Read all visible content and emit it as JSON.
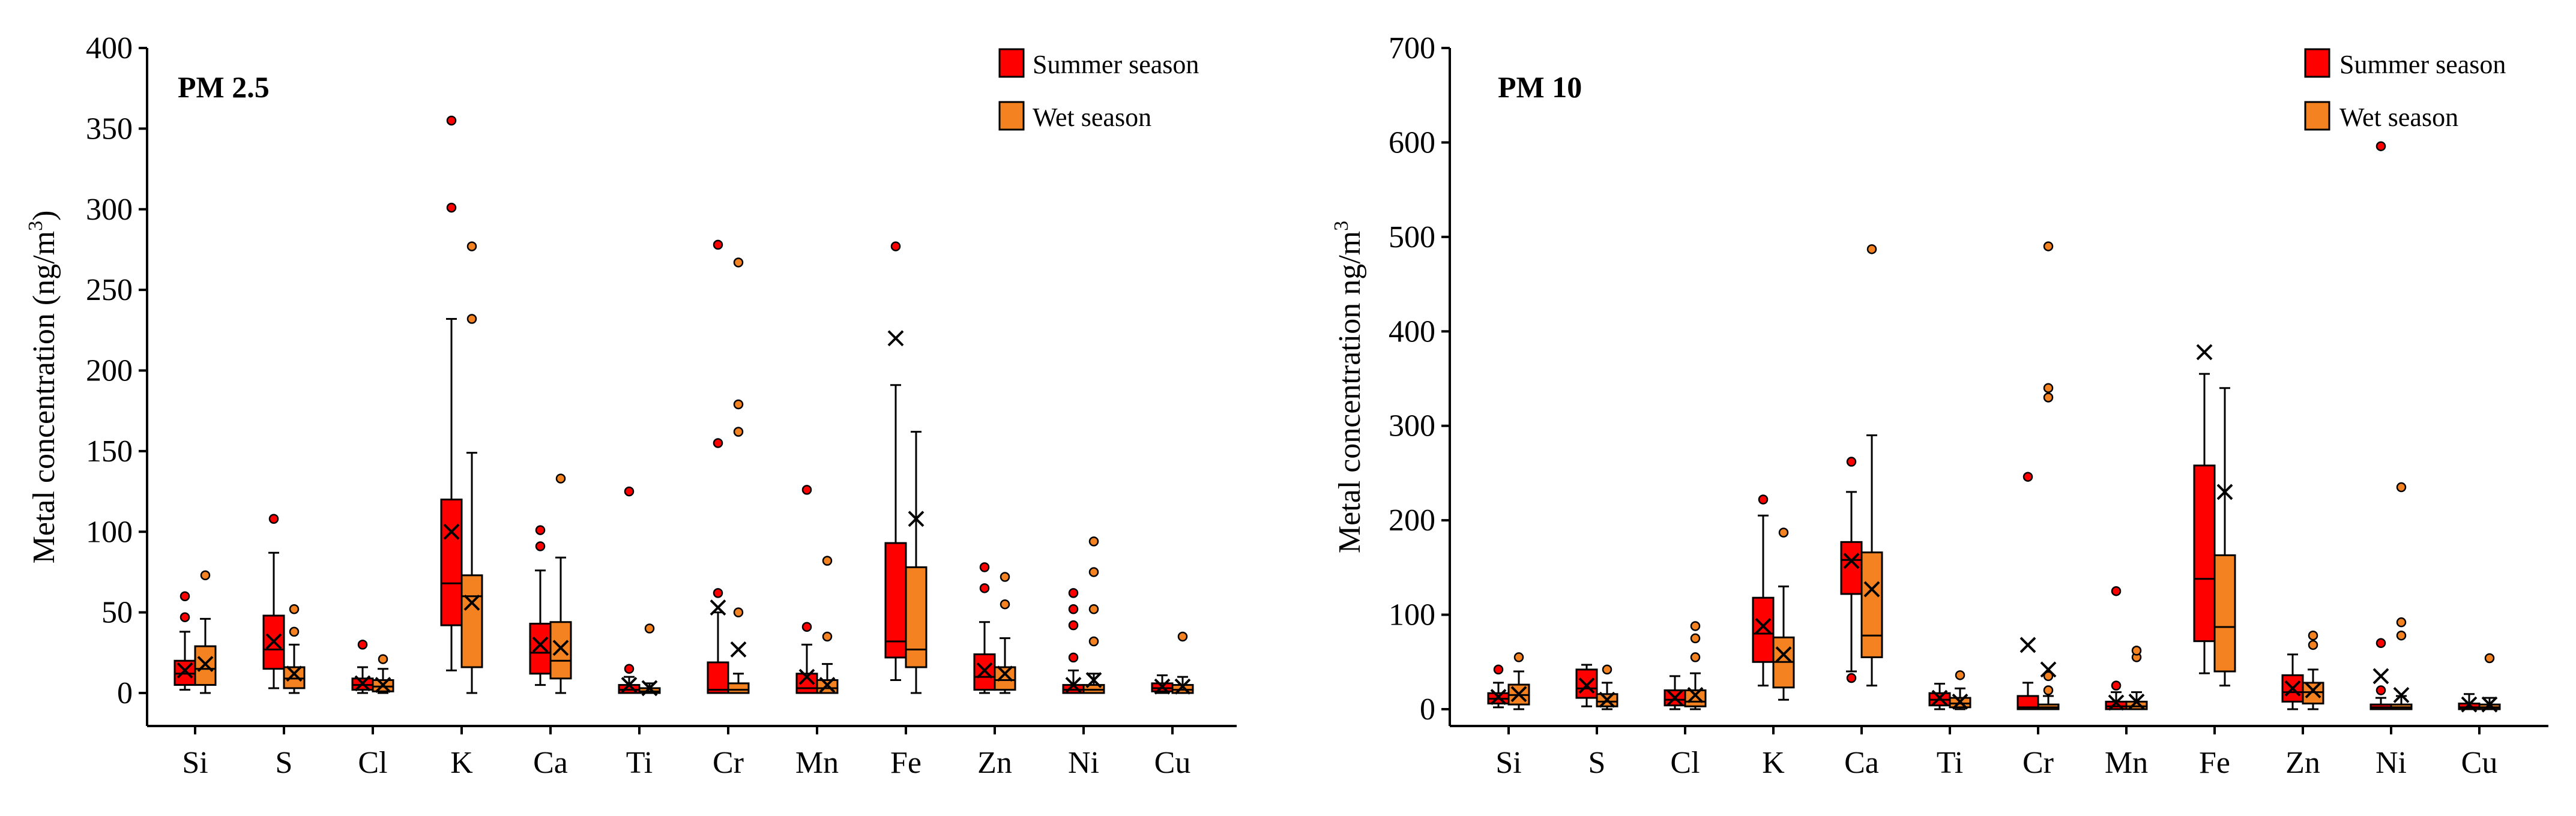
{
  "colors": {
    "summer": "#ff0000",
    "wet": "#f58220",
    "axis": "#000000"
  },
  "chart_data": [
    {
      "type": "boxplot",
      "id": "pm25",
      "title": "PM 2.5",
      "ylabel_main": "Metal concentration (ng/m",
      "ylabel_sup": "3",
      "ylabel_end": ")",
      "ylim": [
        0,
        400
      ],
      "yticks": [
        0,
        50,
        100,
        150,
        200,
        250,
        300,
        350,
        400
      ],
      "legend": {
        "position": "top-right",
        "entries": [
          "Summer season",
          "Wet season"
        ]
      },
      "categories": [
        "Si",
        "S",
        "Cl",
        "K",
        "Ca",
        "Ti",
        "Cr",
        "Mn",
        "Fe",
        "Zn",
        "Ni",
        "Cu"
      ],
      "series": [
        {
          "name": "Summer season",
          "boxes": [
            {
              "min": 2,
              "q1": 5,
              "median": 12,
              "q3": 20,
              "max": 38,
              "mean": 14,
              "outliers": [
                47,
                60
              ]
            },
            {
              "min": 3,
              "q1": 15,
              "median": 27,
              "q3": 48,
              "max": 87,
              "mean": 32,
              "outliers": [
                108
              ]
            },
            {
              "min": 0,
              "q1": 2,
              "median": 5,
              "q3": 9,
              "max": 16,
              "mean": 6,
              "outliers": [
                30
              ]
            },
            {
              "min": 14,
              "q1": 42,
              "median": 68,
              "q3": 120,
              "max": 232,
              "mean": 100,
              "outliers": [
                301,
                355
              ]
            },
            {
              "min": 5,
              "q1": 12,
              "median": 25,
              "q3": 43,
              "max": 76,
              "mean": 30,
              "outliers": [
                91,
                101
              ]
            },
            {
              "min": 0,
              "q1": 0,
              "median": 2,
              "q3": 5,
              "max": 10,
              "mean": 5,
              "outliers": [
                15,
                125
              ]
            },
            {
              "min": 0,
              "q1": 0,
              "median": 2,
              "q3": 19,
              "max": 50,
              "mean": 53,
              "outliers": [
                62,
                155,
                278
              ]
            },
            {
              "min": 0,
              "q1": 0,
              "median": 3,
              "q3": 12,
              "max": 30,
              "mean": 10,
              "outliers": [
                41,
                126
              ]
            },
            {
              "min": 8,
              "q1": 22,
              "median": 32,
              "q3": 93,
              "max": 191,
              "mean": 220,
              "outliers": [
                277
              ]
            },
            {
              "min": 0,
              "q1": 2,
              "median": 10,
              "q3": 24,
              "max": 44,
              "mean": 14,
              "outliers": [
                65,
                78
              ]
            },
            {
              "min": 0,
              "q1": 0,
              "median": 2,
              "q3": 5,
              "max": 14,
              "mean": 5,
              "outliers": [
                22,
                42,
                52,
                62
              ]
            },
            {
              "min": 0,
              "q1": 1,
              "median": 3,
              "q3": 6,
              "max": 11,
              "mean": 4,
              "outliers": []
            }
          ]
        },
        {
          "name": "Wet season",
          "boxes": [
            {
              "min": 0,
              "q1": 5,
              "median": 15,
              "q3": 29,
              "max": 46,
              "mean": 18,
              "outliers": [
                73
              ]
            },
            {
              "min": 0,
              "q1": 3,
              "median": 9,
              "q3": 16,
              "max": 30,
              "mean": 12,
              "outliers": [
                38,
                52
              ]
            },
            {
              "min": 0,
              "q1": 1,
              "median": 4,
              "q3": 8,
              "max": 15,
              "mean": 5,
              "outliers": [
                21
              ]
            },
            {
              "min": 0,
              "q1": 16,
              "median": 60,
              "q3": 73,
              "max": 149,
              "mean": 56,
              "outliers": [
                232,
                277
              ]
            },
            {
              "min": 0,
              "q1": 9,
              "median": 20,
              "q3": 44,
              "max": 84,
              "mean": 28,
              "outliers": [
                133
              ]
            },
            {
              "min": 0,
              "q1": 0,
              "median": 1,
              "q3": 3,
              "max": 6,
              "mean": 3,
              "outliers": [
                40
              ]
            },
            {
              "min": 0,
              "q1": 0,
              "median": 2,
              "q3": 6,
              "max": 12,
              "mean": 27,
              "outliers": [
                50,
                162,
                179,
                267
              ]
            },
            {
              "min": 0,
              "q1": 0,
              "median": 3,
              "q3": 8,
              "max": 18,
              "mean": 5,
              "outliers": [
                35,
                82
              ]
            },
            {
              "min": 0,
              "q1": 16,
              "median": 27,
              "q3": 78,
              "max": 162,
              "mean": 108,
              "outliers": []
            },
            {
              "min": 0,
              "q1": 2,
              "median": 8,
              "q3": 16,
              "max": 34,
              "mean": 12,
              "outliers": [
                55,
                72
              ]
            },
            {
              "min": 0,
              "q1": 0,
              "median": 2,
              "q3": 5,
              "max": 12,
              "mean": 8,
              "outliers": [
                32,
                52,
                75,
                94
              ]
            },
            {
              "min": 0,
              "q1": 0,
              "median": 2,
              "q3": 5,
              "max": 10,
              "mean": 4,
              "outliers": [
                35
              ]
            }
          ]
        }
      ]
    },
    {
      "type": "boxplot",
      "id": "pm10",
      "title": "PM 10",
      "ylabel_main": "Metal concentration ng/m",
      "ylabel_sup": "3",
      "ylabel_end": "",
      "ylim": [
        0,
        700
      ],
      "yticks": [
        0,
        100,
        200,
        300,
        400,
        500,
        600,
        700
      ],
      "legend": {
        "position": "top-right",
        "entries": [
          "Summer season",
          "Wet season"
        ]
      },
      "categories": [
        "Si",
        "S",
        "Cl",
        "K",
        "Ca",
        "Ti",
        "Cr",
        "Mn",
        "Fe",
        "Zn",
        "Ni",
        "Cu"
      ],
      "series": [
        {
          "name": "Summer season",
          "boxes": [
            {
              "min": 2,
              "q1": 6,
              "median": 11,
              "q3": 17,
              "max": 28,
              "mean": 13,
              "outliers": [
                42
              ]
            },
            {
              "min": 3,
              "q1": 12,
              "median": 22,
              "q3": 42,
              "max": 47,
              "mean": 25,
              "outliers": []
            },
            {
              "min": 0,
              "q1": 4,
              "median": 10,
              "q3": 20,
              "max": 35,
              "mean": 12,
              "outliers": []
            },
            {
              "min": 25,
              "q1": 50,
              "median": 80,
              "q3": 118,
              "max": 205,
              "mean": 88,
              "outliers": [
                222
              ]
            },
            {
              "min": 40,
              "q1": 122,
              "median": 158,
              "q3": 177,
              "max": 230,
              "mean": 157,
              "outliers": [
                33,
                262
              ]
            },
            {
              "min": 0,
              "q1": 4,
              "median": 10,
              "q3": 17,
              "max": 27,
              "mean": 12,
              "outliers": []
            },
            {
              "min": 0,
              "q1": 0,
              "median": 2,
              "q3": 14,
              "max": 28,
              "mean": 68,
              "outliers": [
                246
              ]
            },
            {
              "min": 0,
              "q1": 0,
              "median": 3,
              "q3": 8,
              "max": 18,
              "mean": 7,
              "outliers": [
                25,
                125
              ]
            },
            {
              "min": 38,
              "q1": 72,
              "median": 138,
              "q3": 258,
              "max": 355,
              "mean": 378,
              "outliers": []
            },
            {
              "min": 0,
              "q1": 8,
              "median": 18,
              "q3": 36,
              "max": 58,
              "mean": 22,
              "outliers": []
            },
            {
              "min": 0,
              "q1": 0,
              "median": 2,
              "q3": 5,
              "max": 12,
              "mean": 35,
              "outliers": [
                20,
                70,
                596
              ]
            },
            {
              "min": 0,
              "q1": 0,
              "median": 2,
              "q3": 6,
              "max": 16,
              "mean": 5,
              "outliers": []
            }
          ]
        },
        {
          "name": "Wet season",
          "boxes": [
            {
              "min": 0,
              "q1": 5,
              "median": 15,
              "q3": 26,
              "max": 40,
              "mean": 16,
              "outliers": [
                55
              ]
            },
            {
              "min": 0,
              "q1": 3,
              "median": 8,
              "q3": 16,
              "max": 28,
              "mean": 10,
              "outliers": [
                42
              ]
            },
            {
              "min": 0,
              "q1": 3,
              "median": 8,
              "q3": 20,
              "max": 38,
              "mean": 15,
              "outliers": [
                55,
                75,
                88
              ]
            },
            {
              "min": 10,
              "q1": 23,
              "median": 50,
              "q3": 76,
              "max": 130,
              "mean": 58,
              "outliers": [
                187
              ]
            },
            {
              "min": 25,
              "q1": 55,
              "median": 78,
              "q3": 166,
              "max": 290,
              "mean": 127,
              "outliers": [
                487
              ]
            },
            {
              "min": 0,
              "q1": 2,
              "median": 6,
              "q3": 12,
              "max": 22,
              "mean": 8,
              "outliers": [
                36
              ]
            },
            {
              "min": 0,
              "q1": 0,
              "median": 2,
              "q3": 5,
              "max": 14,
              "mean": 42,
              "outliers": [
                20,
                35,
                330,
                340,
                490
              ]
            },
            {
              "min": 0,
              "q1": 0,
              "median": 3,
              "q3": 8,
              "max": 18,
              "mean": 8,
              "outliers": [
                55,
                62
              ]
            },
            {
              "min": 25,
              "q1": 40,
              "median": 87,
              "q3": 163,
              "max": 340,
              "mean": 230,
              "outliers": []
            },
            {
              "min": 0,
              "q1": 6,
              "median": 18,
              "q3": 28,
              "max": 42,
              "mean": 20,
              "outliers": [
                68,
                78
              ]
            },
            {
              "min": 0,
              "q1": 0,
              "median": 2,
              "q3": 5,
              "max": 14,
              "mean": 15,
              "outliers": [
                78,
                92,
                235
              ]
            },
            {
              "min": 0,
              "q1": 0,
              "median": 2,
              "q3": 5,
              "max": 12,
              "mean": 5,
              "outliers": [
                54
              ]
            }
          ]
        }
      ]
    }
  ]
}
